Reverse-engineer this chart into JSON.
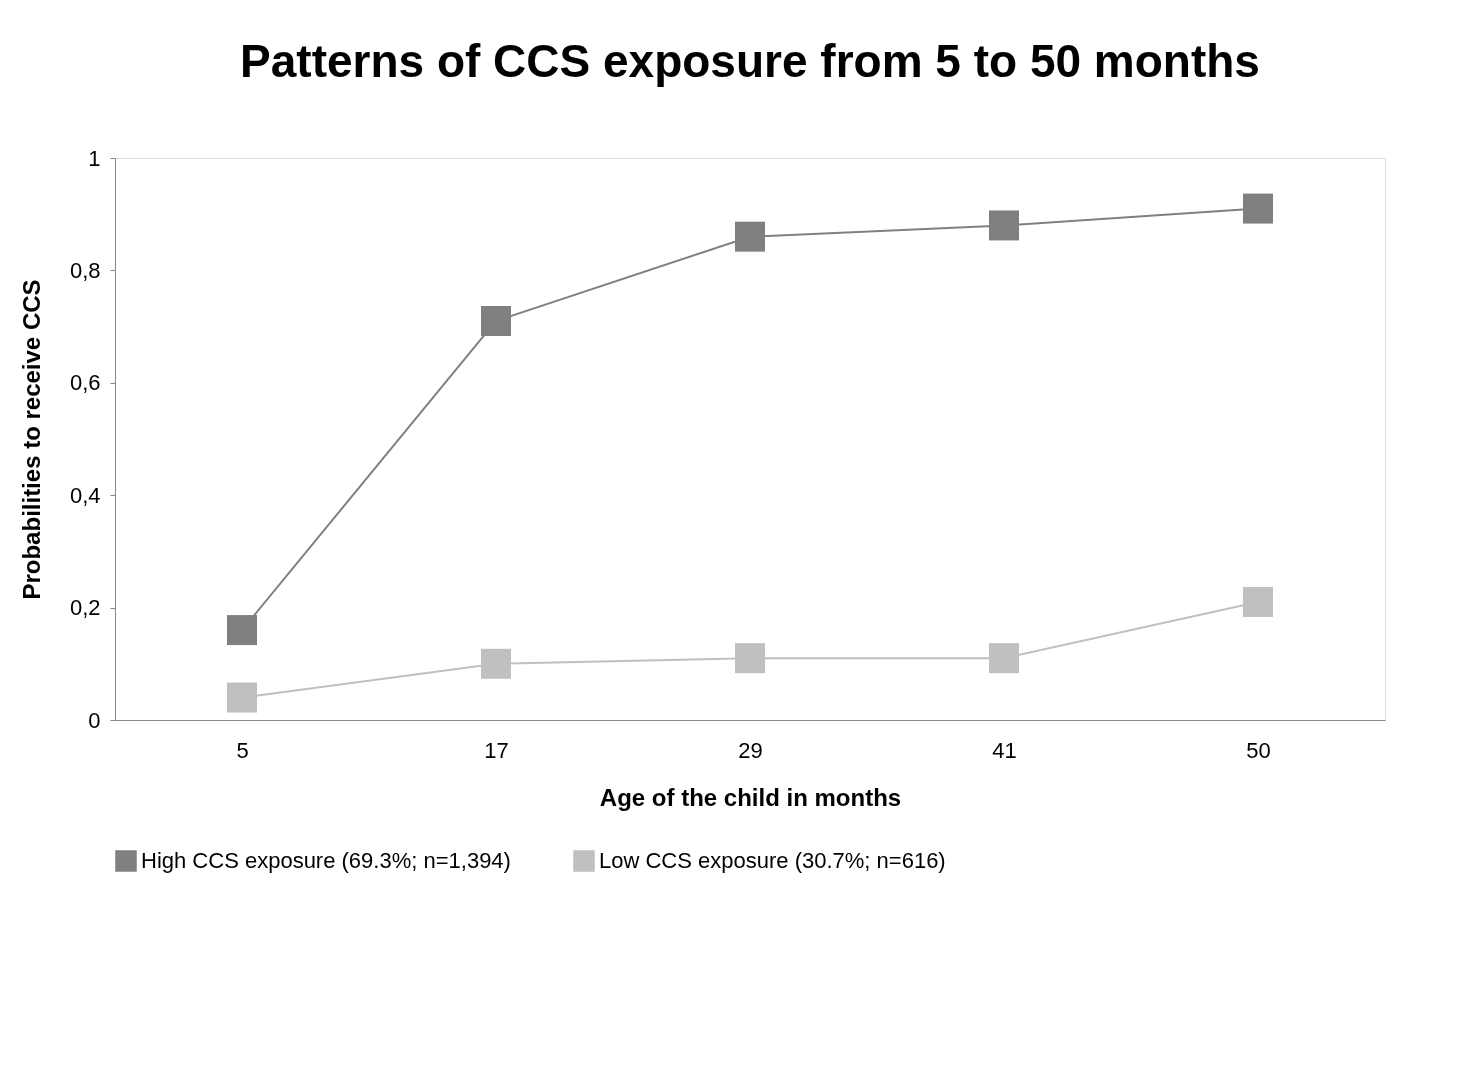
{
  "chart_data": {
    "type": "line",
    "title": "Patterns of CCS exposure from 5 to 50 months",
    "xlabel": "Age of the child in months",
    "ylabel": "Probabilities to receive CCS",
    "categories": [
      "5",
      "17",
      "29",
      "41",
      "50"
    ],
    "series": [
      {
        "name": "High CCS exposure (69.3%; n=1,394)",
        "color": "#808080",
        "values": [
          0.16,
          0.71,
          0.86,
          0.88,
          0.91
        ]
      },
      {
        "name": "Low CCS exposure (30.7%; n=616)",
        "color": "#c0c0c0",
        "values": [
          0.04,
          0.1,
          0.11,
          0.11,
          0.21
        ]
      }
    ],
    "ylim": [
      0,
      1
    ],
    "yticks": [
      0,
      {
        "value": 0.2,
        "label": "0,2"
      },
      {
        "value": 0.4,
        "label": "0,4"
      },
      {
        "value": 0.6,
        "label": "0,6"
      },
      {
        "value": 0.8,
        "label": "0,8"
      },
      1
    ],
    "grid": false,
    "legend": "bottom",
    "marker": "square",
    "line_style": "solid"
  }
}
